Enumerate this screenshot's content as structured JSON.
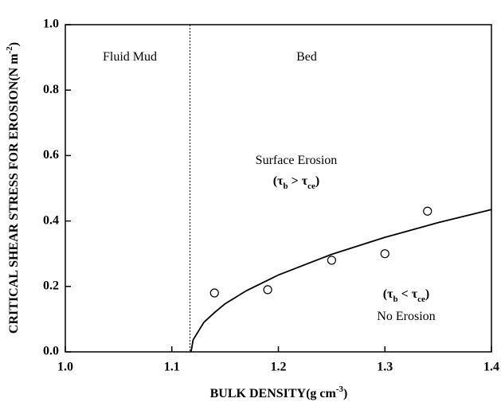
{
  "chart_data": {
    "type": "scatter",
    "xlabel": [
      "BULK DENSITY(g cm",
      "-3",
      ")"
    ],
    "ylabel": [
      "CRITICAL SHEAR STRESS FOR EROSION(N m",
      "-2",
      ")"
    ],
    "xlim": [
      1.0,
      1.4
    ],
    "ylim": [
      0,
      1.0
    ],
    "xticks": [
      {
        "value": 1.0,
        "label": "1.0"
      },
      1.1,
      1.2,
      1.3,
      1.4
    ],
    "yticks": [
      {
        "value": 0,
        "label": "0.0"
      },
      0.2,
      0.4,
      0.6,
      0.8,
      {
        "value": 1.0,
        "label": "1.0"
      }
    ],
    "vlines": [
      1.117
    ],
    "series": [
      {
        "style": "line",
        "color": "#000000",
        "x": [
          1.118,
          1.12,
          1.13,
          1.14,
          1.15,
          1.17,
          1.2,
          1.25,
          1.3,
          1.35,
          1.4
        ],
        "values": [
          0,
          0.037,
          0.09,
          0.12,
          0.147,
          0.187,
          0.235,
          0.298,
          0.35,
          0.395,
          0.435
        ]
      },
      {
        "style": "marker",
        "color": "#000000",
        "x": [
          1.14,
          1.19,
          1.25,
          1.3,
          1.34
        ],
        "values": [
          0.18,
          0.19,
          0.28,
          0.3,
          0.43
        ]
      }
    ],
    "annotations": [
      {
        "parts": [
          "Fluid Mud"
        ]
      },
      {
        "parts": [
          "Bed"
        ]
      },
      {
        "parts": [
          "Surface Erosion"
        ]
      },
      {
        "parts": [
          "(τ",
          "b",
          " > τ",
          "ce",
          ")"
        ]
      },
      {
        "parts": [
          "(τ",
          "b",
          " < τ",
          "ce",
          ")"
        ]
      },
      {
        "parts": [
          "No Erosion"
        ]
      }
    ]
  }
}
